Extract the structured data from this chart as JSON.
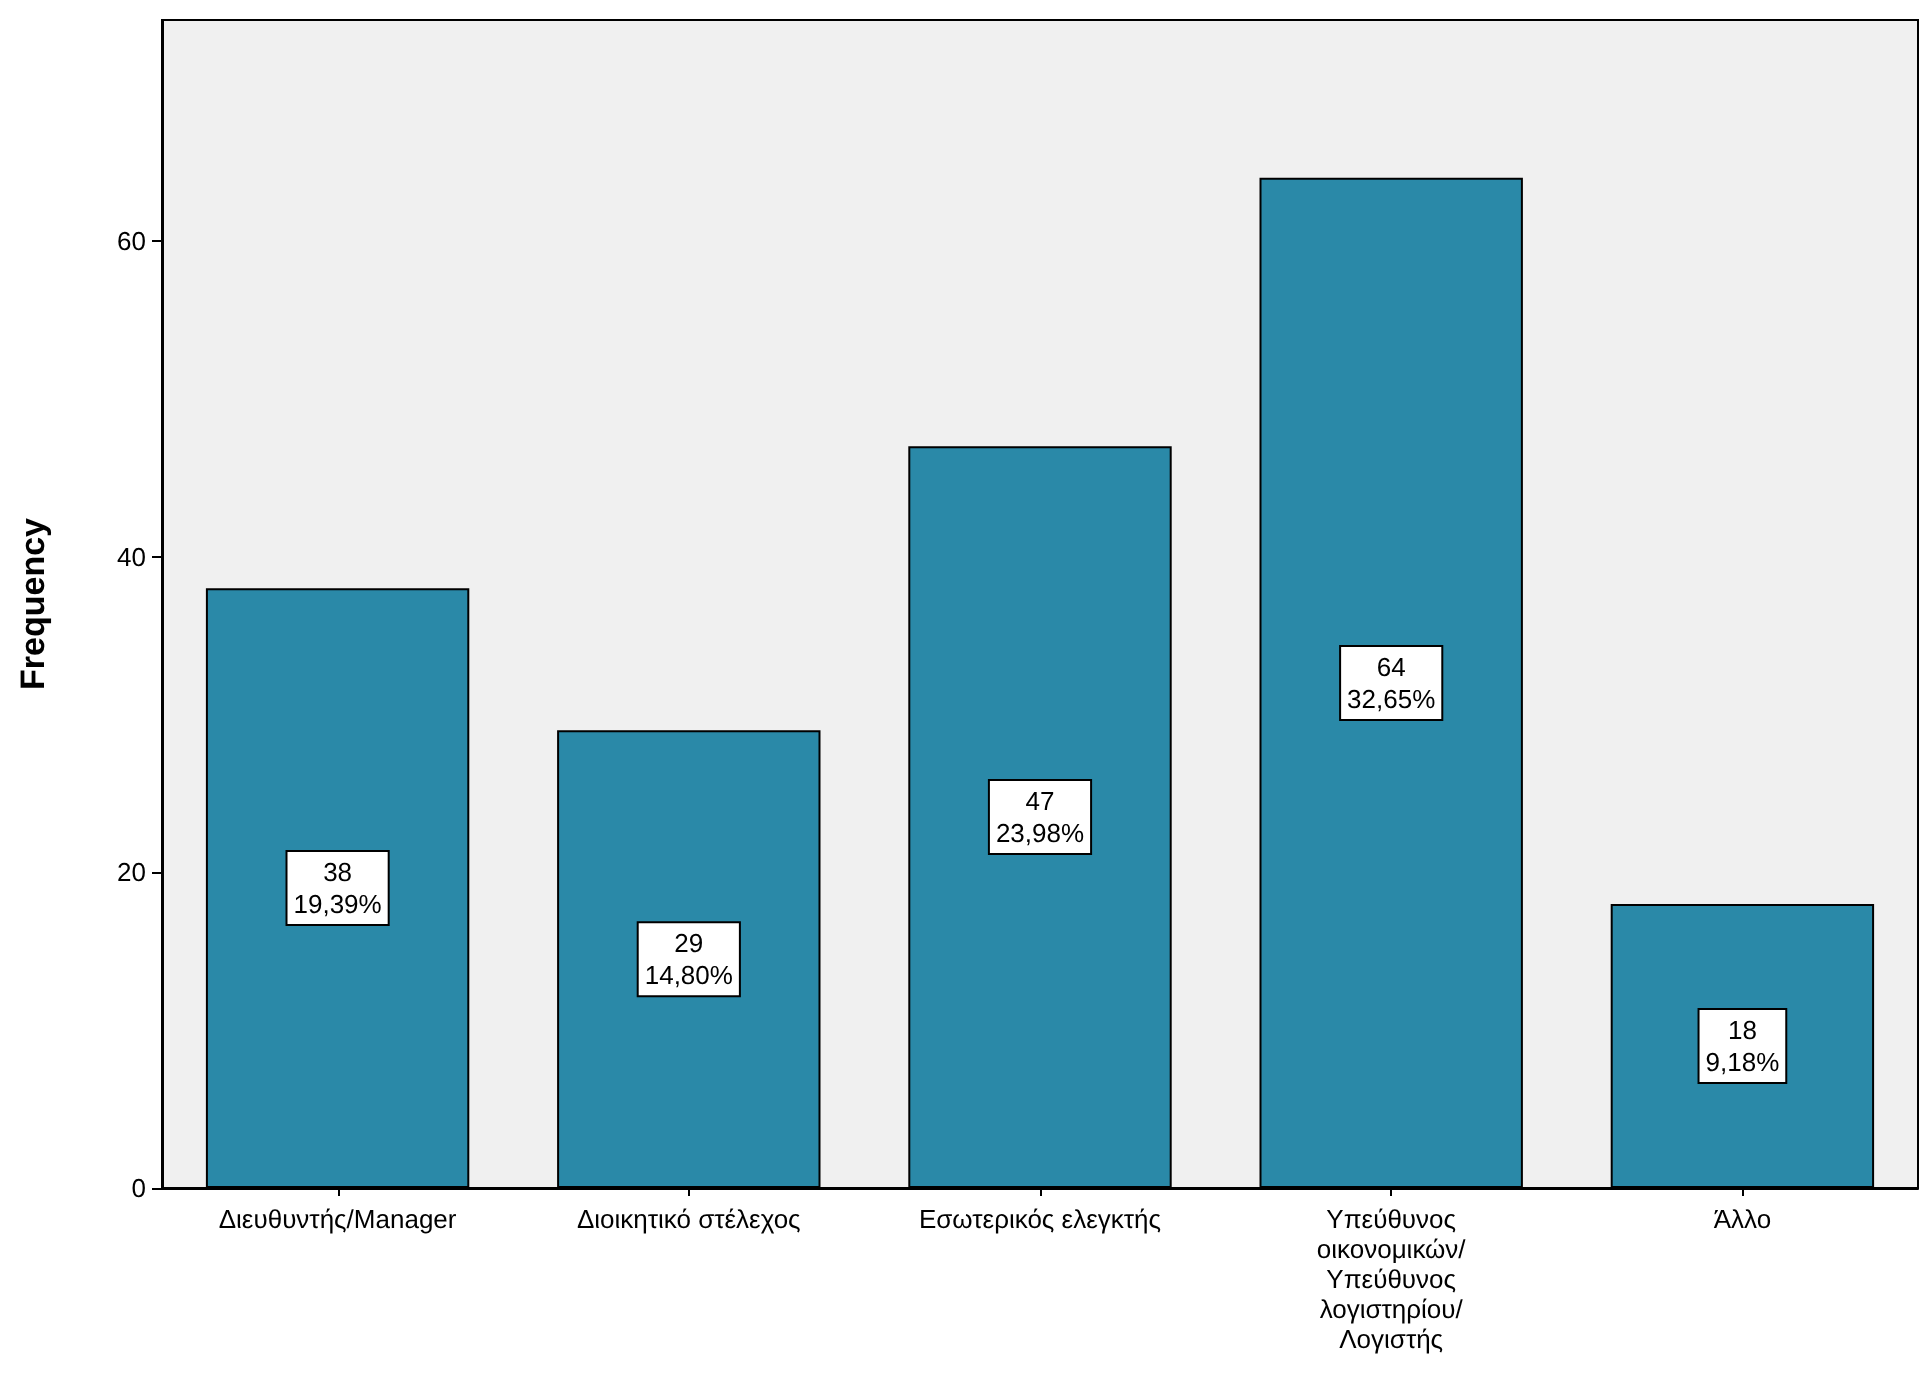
{
  "chart_data": {
    "type": "bar",
    "ylabel": "Frequency",
    "categories": [
      "Διευθυντής/Manager",
      "Διοικητικό στέλεχος",
      "Εσωτερικός ελεγκτής",
      "Υπεύθυνος\nοικονομικών/\nΥπεύθυνος\nλογιστηρίου/\nΛογιστής",
      "Άλλο"
    ],
    "values": [
      38,
      29,
      47,
      64,
      18
    ],
    "value_labels": [
      "38\n19,39%",
      "29\n14,80%",
      "47\n23,98%",
      "64\n32,65%",
      "18\n9,18%"
    ],
    "color": "#2a89a8",
    "ylim": [
      0,
      74
    ],
    "yticks": [
      0,
      20,
      40,
      60
    ],
    "grid": false
  }
}
